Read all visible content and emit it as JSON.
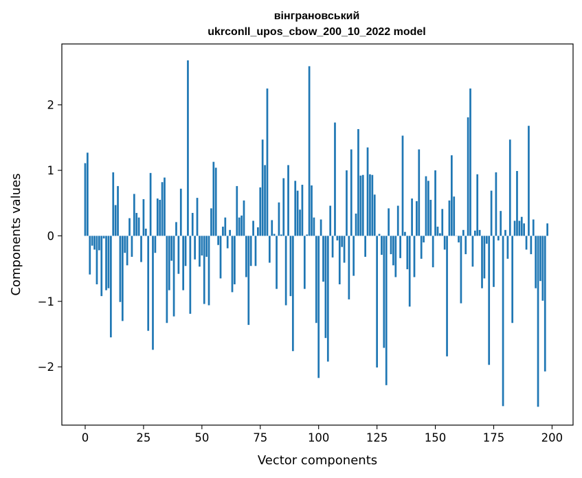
{
  "chart_data": {
    "type": "bar",
    "title": [
      "вінграновський",
      "ukrconll_upos_cbow_200_10_2022 model"
    ],
    "xlabel": "Vector components",
    "ylabel": "Components values",
    "xlim": [
      -10,
      209
    ],
    "ylim": [
      -2.89,
      2.93
    ],
    "xticks": [
      0,
      25,
      50,
      75,
      100,
      125,
      150,
      175,
      200
    ],
    "xtick_labels": [
      "0",
      "25",
      "50",
      "75",
      "100",
      "125",
      "150",
      "175",
      "200"
    ],
    "yticks": [
      -2,
      -1,
      0,
      1,
      2
    ],
    "ytick_labels": [
      "−2",
      "−1",
      "0",
      "1",
      "2"
    ],
    "bar_color": "#1f77b4",
    "grid": false,
    "values": [
      1.11,
      1.27,
      -0.59,
      -0.15,
      -0.21,
      -0.74,
      -0.22,
      -0.92,
      -0.04,
      -0.83,
      -0.8,
      -1.55,
      0.97,
      0.47,
      0.76,
      -1.01,
      -1.3,
      -0.26,
      -0.45,
      0.27,
      -0.32,
      0.64,
      0.35,
      0.28,
      -0.4,
      0.56,
      0.11,
      -1.45,
      0.96,
      -1.74,
      -0.26,
      0.57,
      0.55,
      0.82,
      0.89,
      -1.33,
      -0.83,
      -0.38,
      -1.23,
      0.21,
      -0.58,
      0.72,
      -0.83,
      -0.46,
      2.68,
      -1.19,
      0.35,
      -0.36,
      0.58,
      -0.47,
      -0.3,
      -1.04,
      -0.32,
      -1.06,
      0.42,
      1.13,
      1.04,
      -0.14,
      -0.65,
      0.14,
      0.28,
      -0.19,
      0.09,
      -0.86,
      -0.74,
      0.76,
      0.28,
      0.31,
      0.54,
      -0.63,
      -1.36,
      -0.46,
      0.23,
      -0.46,
      0.13,
      0.74,
      1.47,
      1.08,
      2.25,
      -0.41,
      0.24,
      0.03,
      -0.81,
      0.51,
      0.02,
      0.88,
      -1.06,
      1.08,
      -0.92,
      -1.76,
      0.84,
      0.69,
      0.4,
      0.78,
      -0.81,
      0.02,
      2.59,
      0.77,
      0.28,
      -1.33,
      -2.17,
      0.25,
      -0.7,
      -1.56,
      -1.92,
      0.46,
      -0.33,
      1.73,
      -0.07,
      -0.74,
      -0.17,
      -0.41,
      1.0,
      -0.97,
      1.32,
      -0.61,
      0.34,
      1.63,
      0.92,
      0.93,
      -0.32,
      1.35,
      0.94,
      0.93,
      0.63,
      -2.01,
      0.03,
      -0.29,
      -1.71,
      -2.28,
      0.42,
      -0.28,
      -0.45,
      -0.63,
      0.46,
      -0.34,
      1.53,
      0.06,
      -0.51,
      -1.08,
      0.57,
      -0.63,
      0.53,
      1.32,
      -0.35,
      -0.1,
      0.91,
      0.84,
      0.55,
      -0.48,
      1.0,
      0.14,
      0.04,
      0.41,
      -0.21,
      -1.84,
      0.54,
      1.23,
      0.6,
      0.0,
      -0.1,
      -1.03,
      0.09,
      -0.28,
      1.81,
      2.25,
      -0.47,
      0.08,
      0.94,
      0.09,
      -0.8,
      -0.65,
      -0.12,
      -1.97,
      0.69,
      -0.78,
      0.97,
      -0.07,
      0.38,
      -2.6,
      0.09,
      -0.35,
      1.47,
      -1.33,
      0.23,
      0.99,
      0.23,
      0.29,
      0.19,
      -0.21,
      1.68,
      -0.28,
      0.25,
      -0.8,
      -2.61,
      -0.69,
      -0.99,
      -2.07,
      0.19
    ]
  }
}
